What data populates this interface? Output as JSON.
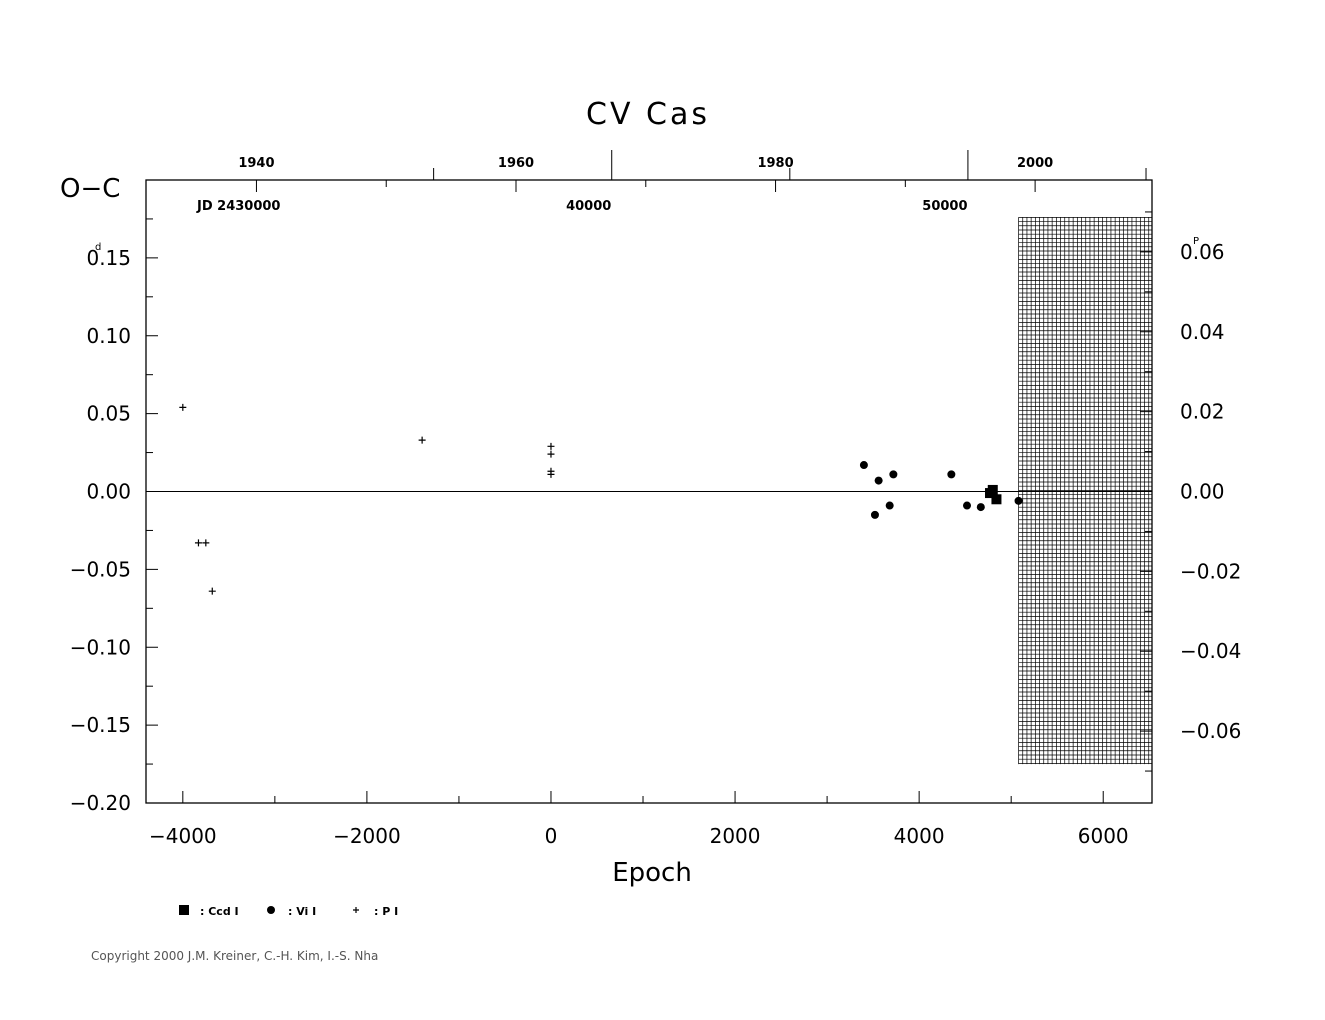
{
  "chart_data": {
    "type": "scatter",
    "title": "CV  Cas",
    "xlabel": "Epoch",
    "ylabel": "O−C",
    "ylabel_unit": "d",
    "y2_unit": "P",
    "xlim": [
      -4400,
      6530
    ],
    "ylim": [
      -0.2,
      0.2
    ],
    "y2lim": [
      -0.078,
      0.078
    ],
    "x_ticks": [
      "−4000",
      "−2000",
      "0",
      "2000",
      "4000",
      "6000"
    ],
    "x_tick_values": [
      -4000,
      -2000,
      0,
      2000,
      4000,
      6000
    ],
    "y_ticks": [
      "0.15",
      "0.10",
      "0.05",
      "0.00",
      "−0.05",
      "−0.10",
      "−0.15",
      "−0.20"
    ],
    "y_tick_values": [
      0.15,
      0.1,
      0.05,
      0.0,
      -0.05,
      -0.1,
      -0.15,
      -0.2
    ],
    "y2_ticks": [
      "0.06",
      "0.04",
      "0.02",
      "0.00",
      "−0.02",
      "−0.04",
      "−0.06"
    ],
    "y2_tick_values": [
      0.06,
      0.04,
      0.02,
      0.0,
      -0.02,
      -0.04,
      -0.06
    ],
    "top_year_ticks": [
      "1940",
      "1960",
      "1980",
      "2000"
    ],
    "top_year_epochs": [
      -3200,
      -380,
      2440,
      5260
    ],
    "top_jd_prefix": "JD  2430000",
    "top_jd_ticks": [
      "40000",
      "50000"
    ],
    "top_jd_epochs": [
      660,
      4530
    ],
    "grid": "off",
    "shaded_region": {
      "x_from": 5080,
      "y_from": -0.175,
      "y_to": 0.176
    },
    "legend_position": "bottom-left",
    "series": [
      {
        "name": "Ccd I",
        "marker": "square",
        "points": [
          [
            4770,
            -0.001
          ],
          [
            4840,
            -0.005
          ],
          [
            4800,
            0.001
          ]
        ]
      },
      {
        "name": "Vi I",
        "marker": "circle",
        "points": [
          [
            3400,
            0.017
          ],
          [
            3560,
            0.007
          ],
          [
            3520,
            -0.015
          ],
          [
            3680,
            -0.009
          ],
          [
            3720,
            0.011
          ],
          [
            4350,
            0.011
          ],
          [
            4520,
            -0.009
          ],
          [
            4670,
            -0.01
          ],
          [
            5080,
            -0.006
          ]
        ]
      },
      {
        "name": "P I",
        "marker": "plus",
        "points": [
          [
            -4000,
            0.054
          ],
          [
            -3830,
            -0.033
          ],
          [
            -3750,
            -0.033
          ],
          [
            -3680,
            -0.064
          ],
          [
            -1400,
            0.033
          ],
          [
            0,
            0.029
          ],
          [
            0,
            0.024
          ],
          [
            0,
            0.013
          ],
          [
            0,
            0.011
          ]
        ]
      }
    ]
  },
  "legend": {
    "ccd": ": Ccd  I",
    "vi": ": Vi  I",
    "p": ": P  I"
  },
  "copyright": "Copyright 2000 J.M. Kreiner, C.-H. Kim, I.-S. Nha"
}
